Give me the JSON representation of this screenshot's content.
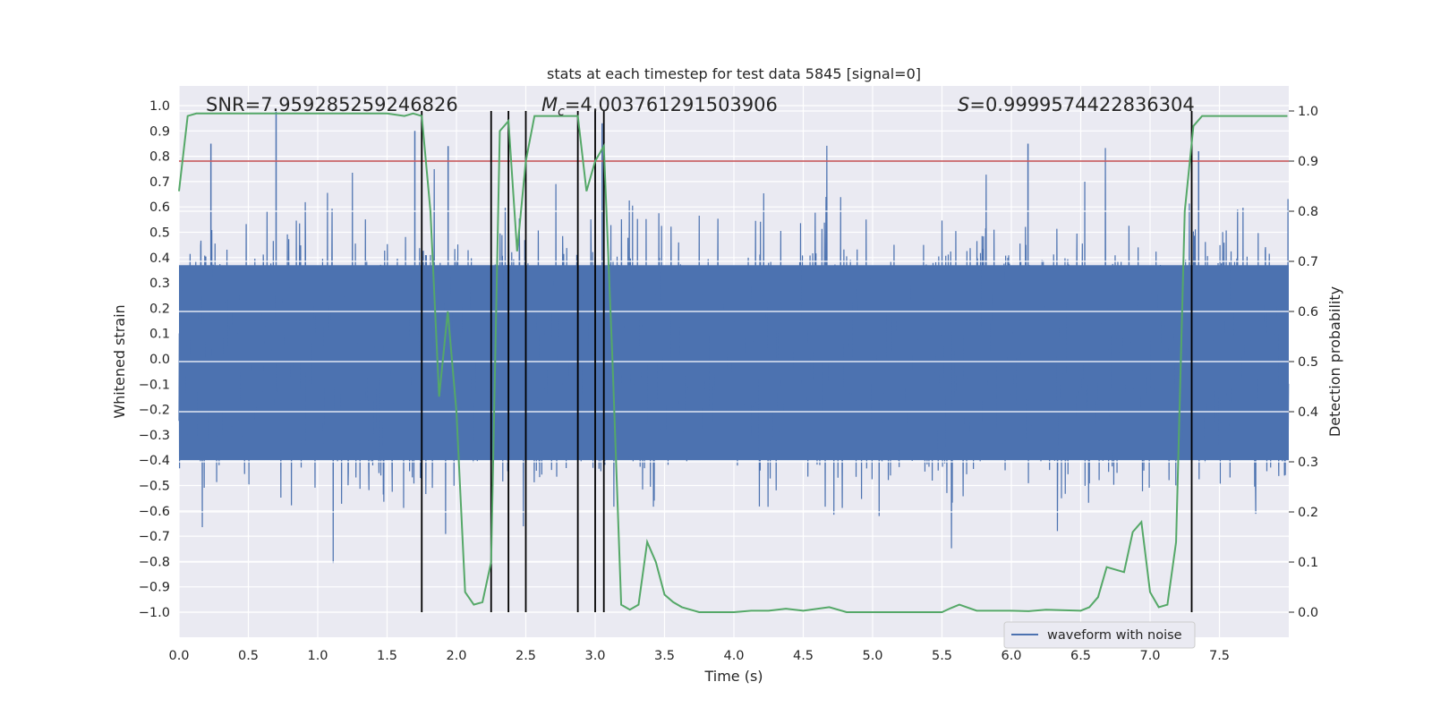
{
  "chart_data": {
    "type": "line",
    "title": "stats at each timestep for test data 5845 [signal=0]",
    "xlabel": "Time (s)",
    "ylabel_left": "Whitened strain",
    "ylabel_right": "Detection probability",
    "xlim": [
      0,
      8
    ],
    "ylim_left": [
      -1.1,
      1.08
    ],
    "ylim_right": [
      -0.05,
      1.03
    ],
    "x_ticks": [
      "0.0",
      "0.5",
      "1.0",
      "1.5",
      "2.0",
      "2.5",
      "3.0",
      "3.5",
      "4.0",
      "4.5",
      "5.0",
      "5.5",
      "6.0",
      "6.5",
      "7.0",
      "7.5"
    ],
    "x_tick_values": [
      0,
      0.5,
      1,
      1.5,
      2,
      2.5,
      3,
      3.5,
      4,
      4.5,
      5,
      5.5,
      6,
      6.5,
      7,
      7.5
    ],
    "y_left_ticks": [
      "1.0",
      "0.9",
      "0.8",
      "0.7",
      "0.6",
      "0.5",
      "0.4",
      "0.3",
      "0.2",
      "0.1",
      "0.0",
      "−0.1",
      "−0.2",
      "−0.3",
      "−0.4",
      "−0.5",
      "−0.6",
      "−0.7",
      "−0.8",
      "−0.9",
      "−1.0"
    ],
    "y_left_tick_values": [
      1,
      0.9,
      0.8,
      0.7,
      0.6,
      0.5,
      0.4,
      0.3,
      0.2,
      0.1,
      0,
      -0.1,
      -0.2,
      -0.3,
      -0.4,
      -0.5,
      -0.6,
      -0.7,
      -0.8,
      -0.9,
      -1
    ],
    "y_right_ticks": [
      "1.0",
      "0.9",
      "0.8",
      "0.7",
      "0.6",
      "0.5",
      "0.4",
      "0.3",
      "0.2",
      "0.1",
      "0.0"
    ],
    "y_right_tick_values": [
      1,
      0.9,
      0.8,
      0.7,
      0.6,
      0.5,
      0.4,
      0.3,
      0.2,
      0.1,
      0
    ],
    "annotations": {
      "snr": "SNR=7.959285259246826",
      "mc_symbol": "M",
      "mc_sub": "c",
      "mc_value": "=4.003761291503906",
      "s_symbol": "S",
      "s_value": "=0.9999574422836304"
    },
    "legend": {
      "label": "waveform with noise",
      "position": "lower-right"
    },
    "threshold": {
      "value_right_axis": 0.9,
      "color": "#c44e52"
    },
    "event_markers_x": [
      1.75,
      2.25,
      2.375,
      2.5,
      2.875,
      3.0,
      3.0625,
      7.3
    ],
    "waveform": {
      "name": "waveform with noise",
      "color": "#4c72b0",
      "sample_rate": 512,
      "envelope_quiet": 0.6,
      "peaks": [
        0.85,
        0.98,
        0.9,
        0.84,
        0.93,
        0.85,
        0.82
      ]
    },
    "probability_series": {
      "name": "detection probability",
      "color": "#55a868",
      "x": [
        0,
        0.0625,
        0.125,
        0.25,
        0.5,
        0.75,
        1.0,
        1.25,
        1.5,
        1.625,
        1.6875,
        1.75,
        1.8125,
        1.875,
        1.9375,
        2.0,
        2.0625,
        2.125,
        2.1875,
        2.25,
        2.3125,
        2.375,
        2.4375,
        2.5,
        2.5625,
        2.625,
        2.75,
        2.8125,
        2.875,
        2.9375,
        3.0,
        3.0625,
        3.125,
        3.1875,
        3.25,
        3.3125,
        3.375,
        3.4375,
        3.5,
        3.5625,
        3.625,
        3.75,
        4.0,
        4.125,
        4.25,
        4.375,
        4.5,
        4.6875,
        4.8125,
        5.0,
        5.25,
        5.5,
        5.5625,
        5.625,
        5.75,
        6.0,
        6.125,
        6.25,
        6.5,
        6.5625,
        6.625,
        6.6875,
        6.75,
        6.8125,
        6.875,
        6.9375,
        7.0,
        7.0625,
        7.125,
        7.1875,
        7.25,
        7.3125,
        7.375,
        7.4375,
        7.5,
        7.75,
        7.99
      ],
      "y": [
        0.84,
        0.99,
        0.995,
        0.995,
        0.995,
        0.995,
        0.995,
        0.995,
        0.995,
        0.99,
        0.995,
        0.99,
        0.8,
        0.43,
        0.6,
        0.4,
        0.04,
        0.015,
        0.02,
        0.1,
        0.96,
        0.98,
        0.72,
        0.9,
        0.99,
        0.99,
        0.99,
        0.99,
        0.99,
        0.84,
        0.9,
        0.93,
        0.5,
        0.015,
        0.005,
        0.015,
        0.14,
        0.1,
        0.035,
        0.02,
        0.01,
        0.0,
        0.0,
        0.003,
        0.003,
        0.007,
        0.003,
        0.01,
        0.0,
        0.0,
        0.0,
        0.0,
        0.008,
        0.015,
        0.003,
        0.003,
        0.002,
        0.005,
        0.003,
        0.01,
        0.03,
        0.09,
        0.085,
        0.08,
        0.16,
        0.18,
        0.04,
        0.01,
        0.015,
        0.14,
        0.8,
        0.97,
        0.99,
        0.99,
        0.99,
        0.99,
        0.99
      ]
    }
  }
}
